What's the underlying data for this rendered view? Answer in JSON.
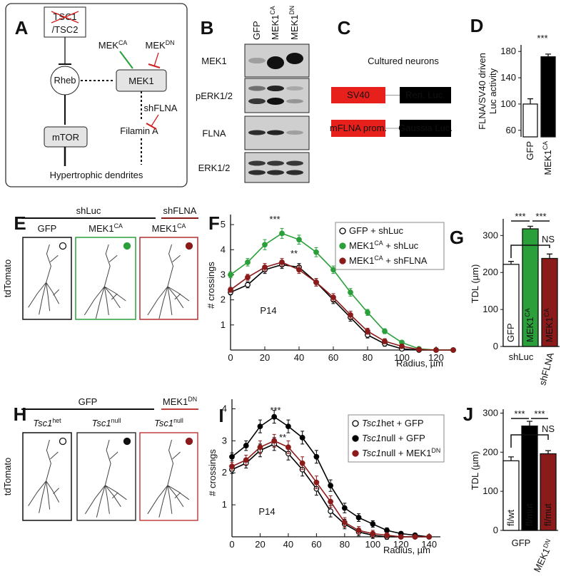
{
  "panel_a": {
    "label": "A",
    "tsc1": "TSC1",
    "tsc2": "/TSC2",
    "rheb": "Rheb",
    "mek1": "MEK1",
    "mtor": "mTOR",
    "filamin": "Filamin A",
    "dendrites": "Hypertrophic dendrites",
    "mek_ca": [
      "MEK",
      {
        "sup": "CA"
      }
    ],
    "mek_dn": [
      "MEK",
      {
        "sup": "DN"
      }
    ],
    "shflna": "shFLNA"
  },
  "panel_b": {
    "label": "B",
    "lanes": [
      "GFP",
      [
        "MEK1",
        {
          "sup": "CA"
        }
      ],
      [
        "MEK1",
        {
          "sup": "DN"
        }
      ]
    ],
    "rows": [
      "MEK1",
      "pERK1/2",
      "FLNA",
      "ERK1/2"
    ]
  },
  "panel_c": {
    "label": "C",
    "title": "Cultured neurons",
    "constructs": [
      [
        "SV40",
        "Ren. Luc."
      ],
      [
        "mFLNA prom.",
        "Gaussia Luc."
      ]
    ]
  },
  "panel_e": {
    "label": "E",
    "groups": [
      "shLuc",
      "shFLNA"
    ],
    "columns": [
      "GFP",
      [
        "MEK1",
        {
          "sup": "CA"
        }
      ],
      [
        "MEK1",
        {
          "sup": "CA"
        }
      ]
    ],
    "side_label": "tdTomato"
  },
  "panel_h": {
    "label": "H",
    "groups": [
      "GFP",
      [
        "MEK1",
        {
          "sup": "DN"
        }
      ]
    ],
    "columns": [
      [
        {
          "i": "Tsc1"
        },
        {
          "sup": "het"
        }
      ],
      [
        {
          "i": "Tsc1"
        },
        {
          "sup": "null"
        }
      ],
      [
        {
          "i": "Tsc1"
        },
        {
          "sup": "null"
        }
      ]
    ],
    "side_label": "tdTomato"
  },
  "chart_data": [
    {
      "type": "bar",
      "label": "D",
      "y_label": [
        "FLNA/SV40 driven",
        "Luc activity"
      ],
      "categories": [
        "GFP",
        [
          "MEK1",
          {
            "sup": "CA"
          }
        ]
      ],
      "values": [
        100,
        172
      ],
      "errors": [
        8,
        4
      ],
      "colors": [
        "#ffffff",
        "#000000"
      ],
      "ylim": [
        50,
        190
      ],
      "yticks": [
        60,
        100,
        140,
        180
      ],
      "annotations": [
        {
          "text": "***",
          "color": "#000000"
        }
      ]
    },
    {
      "type": "line",
      "label": "F",
      "x_label": "Radius, µm",
      "y_label": "# crossings",
      "x": [
        0,
        10,
        20,
        30,
        40,
        50,
        60,
        70,
        80,
        90,
        100,
        110,
        120,
        130
      ],
      "xlim": [
        0,
        130
      ],
      "xticks": [
        0,
        20,
        40,
        60,
        80,
        100,
        120
      ],
      "ylim": [
        0,
        5.4
      ],
      "yticks": [
        1,
        2,
        3,
        4,
        5
      ],
      "series": [
        {
          "name": "GFP + shLuc",
          "color": "#000000",
          "marker": "open",
          "values": [
            2.3,
            2.6,
            3.2,
            3.4,
            3.3,
            2.7,
            2.0,
            1.3,
            0.6,
            0.25,
            0.05,
            0,
            0,
            0
          ],
          "errors": [
            0.1,
            0.12,
            0.15,
            0.15,
            0.15,
            0.15,
            0.15,
            0.15,
            0.12,
            0.1,
            0.08,
            0.05,
            0.02,
            0
          ]
        },
        {
          "name": [
            [
              "MEK1"
            ],
            {
              "sup": "CA"
            },
            " + shLuc"
          ],
          "color": "#2a9f3a",
          "marker": "filled",
          "values": [
            3.0,
            3.5,
            4.2,
            4.65,
            4.4,
            3.9,
            3.2,
            2.3,
            1.5,
            0.75,
            0.3,
            0.05,
            0,
            0
          ],
          "errors": [
            0.12,
            0.15,
            0.2,
            0.2,
            0.18,
            0.18,
            0.15,
            0.15,
            0.12,
            0.1,
            0.08,
            0.05,
            0.02,
            0
          ]
        },
        {
          "name": [
            [
              "MEK1"
            ],
            {
              "sup": "CA"
            },
            " + shFLNA"
          ],
          "color": "#8b1a1a",
          "marker": "filled",
          "values": [
            2.4,
            2.9,
            3.3,
            3.5,
            3.2,
            2.7,
            2.1,
            1.4,
            0.75,
            0.35,
            0.15,
            0.02,
            0,
            0
          ],
          "errors": [
            0.1,
            0.12,
            0.15,
            0.15,
            0.15,
            0.15,
            0.15,
            0.15,
            0.12,
            0.1,
            0.08,
            0.05,
            0.02,
            0
          ]
        }
      ],
      "annotations": [
        {
          "text": "***",
          "color": "#000000"
        },
        {
          "text": "**",
          "color": "#2a9f3a"
        },
        {
          "text": "P14",
          "color": "#000000"
        }
      ]
    },
    {
      "type": "bar",
      "label": "G",
      "y_label": "TDL (µm)",
      "categories": [
        "GFP",
        [
          "MEK1",
          {
            "sup": "CA"
          }
        ],
        [
          "MEK1",
          {
            "sup": "CA"
          }
        ]
      ],
      "values": [
        222,
        318,
        238
      ],
      "errors": [
        8,
        7,
        12
      ],
      "colors": [
        "#ffffff",
        "#2a9f3a",
        "#8b1a1a"
      ],
      "ylim": [
        0,
        345
      ],
      "yticks": [
        0,
        100,
        200,
        300
      ],
      "group_labels": [
        "shLuc",
        "shFLNA"
      ],
      "annotations": [
        {
          "text": "***",
          "color": "#000000"
        },
        {
          "text": "***",
          "color": "#000000"
        },
        {
          "text": "NS",
          "color": "#000000"
        }
      ]
    },
    {
      "type": "line",
      "label": "I",
      "x_label": "Radius, µm",
      "y_label": "# crossings",
      "x": [
        0,
        10,
        20,
        30,
        40,
        50,
        60,
        70,
        80,
        90,
        100,
        110,
        120,
        130,
        140
      ],
      "xlim": [
        0,
        148
      ],
      "xticks": [
        0,
        20,
        40,
        60,
        80,
        100,
        120,
        140
      ],
      "ylim": [
        0,
        4.3
      ],
      "yticks": [
        1,
        2,
        3,
        4
      ],
      "series": [
        {
          "name": [
            {
              "i": "Tsc1"
            },
            "het + GFP"
          ],
          "color": "#000000",
          "marker": "open",
          "values": [
            2.1,
            2.3,
            2.7,
            2.9,
            2.6,
            2.1,
            1.5,
            0.8,
            0.4,
            0.15,
            0.05,
            0,
            0,
            0,
            0
          ],
          "errors": [
            0.12,
            0.15,
            0.2,
            0.2,
            0.2,
            0.2,
            0.2,
            0.18,
            0.15,
            0.12,
            0.1,
            0.08,
            0.05,
            0.03,
            0
          ]
        },
        {
          "name": [
            {
              "i": "Tsc1"
            },
            "null + GFP"
          ],
          "color": "#000000",
          "marker": "filled",
          "values": [
            2.5,
            2.85,
            3.45,
            3.75,
            3.45,
            3.1,
            2.5,
            1.6,
            0.9,
            0.6,
            0.4,
            0.2,
            0.1,
            0.05,
            0
          ],
          "errors": [
            0.12,
            0.15,
            0.2,
            0.2,
            0.2,
            0.2,
            0.2,
            0.18,
            0.15,
            0.12,
            0.1,
            0.08,
            0.05,
            0.03,
            0
          ]
        },
        {
          "name": [
            {
              "i": "Tsc1"
            },
            "null + MEK1",
            {
              "sup": "DN"
            }
          ],
          "color": "#8b1a1a",
          "marker": "filled",
          "values": [
            2.2,
            2.4,
            2.8,
            3.0,
            2.8,
            2.3,
            1.7,
            1.1,
            0.45,
            0.2,
            0.1,
            0.05,
            0,
            0,
            0
          ],
          "errors": [
            0.12,
            0.15,
            0.2,
            0.2,
            0.2,
            0.2,
            0.2,
            0.18,
            0.15,
            0.12,
            0.1,
            0.08,
            0.05,
            0.03,
            0
          ]
        }
      ],
      "annotations": [
        {
          "text": "***",
          "color": "#000000"
        },
        {
          "text": "**",
          "color": "#d02020"
        },
        {
          "text": "P14",
          "color": "#000000"
        }
      ]
    },
    {
      "type": "bar",
      "label": "J",
      "y_label": "TDL (µm)",
      "categories": [
        "fl/wt",
        "fl/mut",
        "fl/mut"
      ],
      "values": [
        178,
        267,
        196
      ],
      "errors": [
        10,
        12,
        8
      ],
      "colors": [
        "#ffffff",
        "#000000",
        "#8b1a1a"
      ],
      "ylim": [
        0,
        310
      ],
      "yticks": [
        0,
        100,
        200,
        300
      ],
      "group_labels": [
        "GFP",
        [
          "MEK1",
          {
            "sup": "DN"
          }
        ]
      ],
      "annotations": [
        {
          "text": "***",
          "color": "#000000"
        },
        {
          "text": "***",
          "color": "#000000"
        },
        {
          "text": "NS",
          "color": "#000000"
        }
      ]
    }
  ]
}
